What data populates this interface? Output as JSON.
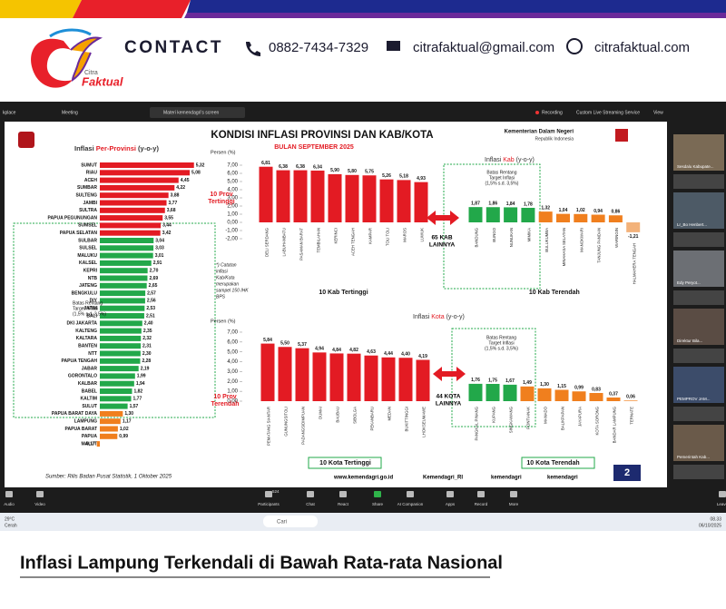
{
  "header": {
    "brand": [
      "Citra",
      "Faktual"
    ],
    "contact": "CONTACT",
    "phone": "0882-7434-7329",
    "email": "citrafaktual@gmail.com",
    "web": "citrafaktual.com"
  },
  "zoom": {
    "top": [
      "kplace",
      "Meeting",
      "Materi kemendagri's screen",
      "Recording",
      "Custom Live Streaming Service",
      "View"
    ],
    "participants": [
      "Sesdalu Kabupate...",
      "Lr_Bo Henbert...",
      "Edy Peryot...",
      "Direktur Bila...",
      "PEMPROV JAM...",
      "Pemerintah Kab..."
    ],
    "toolbar": [
      "Audio",
      "Video",
      "Participants",
      "Chat",
      "React",
      "Share",
      "AI Companion",
      "Apps",
      "Record",
      "More",
      "Leave"
    ],
    "count": "524",
    "taskbar": [
      "29°C",
      "Cerah",
      "Cari",
      "08.33",
      "06/10/2025"
    ]
  },
  "slide": {
    "title": "KONDISI INFLASI PROVINSI DAN KAB/KOTA",
    "ministry": [
      "Kementerian Dalam Negeri",
      "Republik Indonesia"
    ],
    "period": "BULAN SEPTEMBER 2025",
    "note": [
      "*) Catatan",
      "inflasi",
      "Kab/Kota",
      "merupakan",
      "sampel 150 IHK",
      "BPS"
    ],
    "provinces": {
      "title": [
        "Inflasi ",
        "Per-Provinsi",
        " (y-o-y)"
      ],
      "range_note": [
        "Batas Rentang",
        "Target Inflasi",
        "(1,5% s.d. 3,5%)"
      ],
      "top_label": [
        "10 Prov",
        "Tertinggi"
      ],
      "low_label": [
        "10 Prov",
        "Terendah"
      ],
      "categories": [
        "SUMUT",
        "RIAU",
        "ACEH",
        "SUMBAR",
        "SULTENG",
        "JAMBI",
        "SULTRA",
        "PAPUA PEGUNUNGAN",
        "SUMSEL",
        "PAPUA SELATAN",
        "SULBAR",
        "SULSEL",
        "MALUKU",
        "KALSEL",
        "KEPRI",
        "NTB",
        "JATENG",
        "BENGKULU",
        "DIY",
        "JATIM",
        "BALI",
        "DKI JAKARTA",
        "KALTENG",
        "KALTARA",
        "BANTEN",
        "NTT",
        "PAPUA TENGAH",
        "JABAR",
        "GORONTALO",
        "KALBAR",
        "BABEL",
        "KALTIM",
        "SULUT",
        "PAPUA BARAT DAYA",
        "LAMPUNG",
        "PAPUA BARAT",
        "PAPUA",
        "MALUT"
      ],
      "values": [
        5.32,
        5.08,
        4.45,
        4.22,
        3.88,
        3.77,
        3.68,
        3.55,
        3.44,
        3.42,
        3.04,
        3.03,
        3.01,
        2.91,
        2.7,
        2.69,
        2.65,
        2.57,
        2.56,
        2.53,
        2.51,
        2.4,
        2.35,
        2.32,
        2.31,
        2.3,
        2.28,
        2.19,
        1.99,
        1.94,
        1.82,
        1.77,
        1.57,
        1.3,
        1.17,
        1.02,
        0.99,
        -0.17
      ],
      "value_labels": [
        "5,32",
        "5,08",
        "4,45",
        "4,22",
        "3,88",
        "3,77",
        "3,68",
        "3,55",
        "3,44",
        "3,42",
        "3,04",
        "3,03",
        "3,01",
        "2,91",
        "2,70",
        "2,69",
        "2,65",
        "2,57",
        "2,56",
        "2,53",
        "2,51",
        "2,40",
        "2,35",
        "2,32",
        "2,31",
        "2,30",
        "2,28",
        "2,19",
        "1,99",
        "1,94",
        "1,82",
        "1,77",
        "1,57",
        "1,30",
        "1,17",
        "1,02",
        "0,99",
        "-0,17"
      ],
      "colors": [
        "#e31b23",
        "#e31b23",
        "#e31b23",
        "#e31b23",
        "#e31b23",
        "#e31b23",
        "#e31b23",
        "#e31b23",
        "#e31b23",
        "#e31b23",
        "#22a84a",
        "#22a84a",
        "#22a84a",
        "#22a84a",
        "#22a84a",
        "#22a84a",
        "#22a84a",
        "#22a84a",
        "#22a84a",
        "#22a84a",
        "#22a84a",
        "#22a84a",
        "#22a84a",
        "#22a84a",
        "#22a84a",
        "#22a84a",
        "#22a84a",
        "#22a84a",
        "#22a84a",
        "#22a84a",
        "#22a84a",
        "#22a84a",
        "#22a84a",
        "#f07f1e",
        "#f07f1e",
        "#f07f1e",
        "#f07f1e",
        "#f07f1e"
      ]
    },
    "kab_top": {
      "axis_label": "Persen (%)",
      "yticks": [
        {
          "value": 7,
          "label": "7,00"
        },
        {
          "value": 6,
          "label": "6,00"
        },
        {
          "value": 5,
          "label": "5,00"
        },
        {
          "value": 4,
          "label": "4,00"
        },
        {
          "value": 3,
          "label": "3,00"
        },
        {
          "value": 2,
          "label": "2,00"
        },
        {
          "value": 1,
          "label": "1,00"
        },
        {
          "value": 0,
          "label": "0,00"
        },
        {
          "value": -1,
          "label": "-1,00"
        },
        {
          "value": -2,
          "label": "-2,00"
        }
      ],
      "categories": [
        "DELI SERDANG",
        "LABUHANBATU",
        "PASAMAN BARAT",
        "TEMBILAHAN",
        "KERINCI",
        "ACEH TENGAH",
        "KAMPAR",
        "TOLI TOLI",
        "MAROS",
        "LUWUK"
      ],
      "values": [
        6.81,
        6.38,
        6.38,
        6.34,
        5.9,
        5.8,
        5.75,
        5.26,
        5.18,
        4.93
      ],
      "value_labels": [
        "6,81",
        "6,38",
        "6,38",
        "6,34",
        "5,90",
        "5,80",
        "5,75",
        "5,26",
        "5,18",
        "4,93"
      ],
      "color": "#e31b23",
      "caption": "10 Kab Tertinggi"
    },
    "kab_others": [
      "65 KAB",
      "LAINNYA"
    ],
    "kab_low": {
      "title": [
        "Inflasi ",
        "Kab",
        " (y-o-y)"
      ],
      "range_note": [
        "Batas Rentang",
        "Target Inflasi",
        "(1,5% s.d. 3,5%)"
      ],
      "categories": [
        "BANDUNG",
        "BUNGO",
        "NUNUKAN",
        "MIMIKA",
        "BULUKUMBA",
        "MINAHASA SELATAN",
        "MANOKWARI",
        "TANJUNG PANDAN",
        "WARINGIN",
        "HALMAHERA TENGAH"
      ],
      "values": [
        1.87,
        1.86,
        1.84,
        1.78,
        1.32,
        1.04,
        1.02,
        0.94,
        0.86,
        -1.21
      ],
      "value_labels": [
        "1,87",
        "1,86",
        "1,84",
        "1,78",
        "1,32",
        "1,04",
        "1,02",
        "0,94",
        "0,86",
        "-1,21"
      ],
      "colors": [
        "#22a84a",
        "#22a84a",
        "#22a84a",
        "#22a84a",
        "#f07f1e",
        "#f07f1e",
        "#f07f1e",
        "#f07f1e",
        "#f07f1e",
        "#f3b27a"
      ],
      "caption": "10 Kab Terendah"
    },
    "kota_top": {
      "title": [
        "Inflasi ",
        "Kota",
        " (y-o-y)"
      ],
      "axis_label": "Persen (%)",
      "yticks": [
        {
          "value": 7,
          "label": "7,00"
        },
        {
          "value": 6,
          "label": "6,00"
        },
        {
          "value": 5,
          "label": "5,00"
        },
        {
          "value": 4,
          "label": "4,00"
        },
        {
          "value": 3,
          "label": "3,00"
        },
        {
          "value": 2,
          "label": "2,00"
        },
        {
          "value": 1,
          "label": "1,00"
        },
        {
          "value": 0,
          "label": "0,00"
        }
      ],
      "categories": [
        "PEMATANG SIANTAR",
        "GUNUNGSITOLI",
        "PADANGSIDIMPUAN",
        "DUMAI",
        "BAUBAU",
        "SIBOLGA",
        "PEKANBARU",
        "MEDAN",
        "BUKITTINGGI",
        "LHOKSEUMAWE"
      ],
      "values": [
        5.84,
        5.5,
        5.37,
        4.94,
        4.84,
        4.82,
        4.63,
        4.44,
        4.4,
        4.19
      ],
      "value_labels": [
        "5,84",
        "5,50",
        "5,37",
        "4,94",
        "4,84",
        "4,82",
        "4,63",
        "4,44",
        "4,40",
        "4,19"
      ],
      "color": "#e31b23",
      "caption": "10 Kota Tertinggi"
    },
    "kota_others": [
      "44 KOTA",
      "LAINNYA"
    ],
    "kota_low": {
      "range_note": [
        "Batas Rentang",
        "Target Inflasi",
        "(1,5% s.d. 3,5%)"
      ],
      "categories": [
        "PANGKAL PINANG",
        "KUPANG",
        "SINGKAWANG",
        "PONTIANAK",
        "MANADO",
        "BALIKPAPAN",
        "JAYAPURA",
        "KOTA SORONG",
        "BANDAR LAMPUNG",
        "TERNATE"
      ],
      "values": [
        1.76,
        1.75,
        1.67,
        1.49,
        1.3,
        1.15,
        0.99,
        0.83,
        0.37,
        0.06
      ],
      "value_labels": [
        "1,76",
        "1,75",
        "1,67",
        "1,49",
        "1,30",
        "1,15",
        "0,99",
        "0,83",
        "0,37",
        "0,06"
      ],
      "colors": [
        "#22a84a",
        "#22a84a",
        "#22a84a",
        "#f07f1e",
        "#f07f1e",
        "#f07f1e",
        "#f07f1e",
        "#f07f1e",
        "#f07f1e",
        "#f07f1e"
      ],
      "caption": "10 Kota Terendah"
    },
    "source": "Sumber: Rilis Badan Pusat Statistik, 1 Oktober 2025",
    "links": [
      "www.kemendagri.go.id",
      "Kemendagri_RI",
      "kemendagri",
      "kemendagri"
    ],
    "page": "2"
  },
  "headline": "Inflasi Lampung Terkendali di Bawah Rata-rata Nasional"
}
